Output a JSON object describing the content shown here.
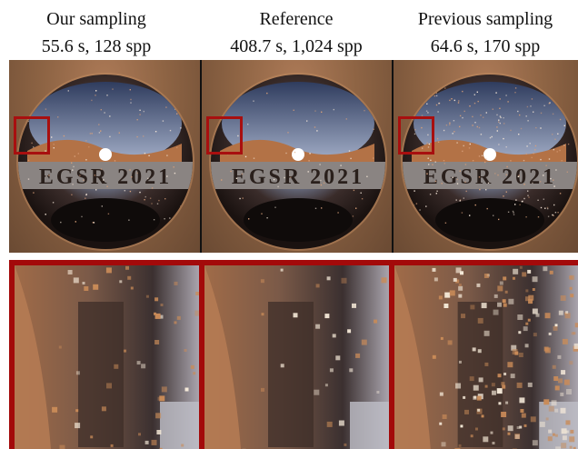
{
  "columns": [
    {
      "label": "Our sampling",
      "stats": "55.6 s, 128 spp"
    },
    {
      "label": "Reference",
      "stats": "408.7 s, 1,024 spp"
    },
    {
      "label": "Previous sampling",
      "stats": "64.6 s, 170 spp"
    }
  ],
  "scene": {
    "band_text": "EGSR 2021"
  },
  "colors": {
    "highlight": "#a80f0f",
    "frame": "#a30a0a",
    "separator": "#111111"
  }
}
